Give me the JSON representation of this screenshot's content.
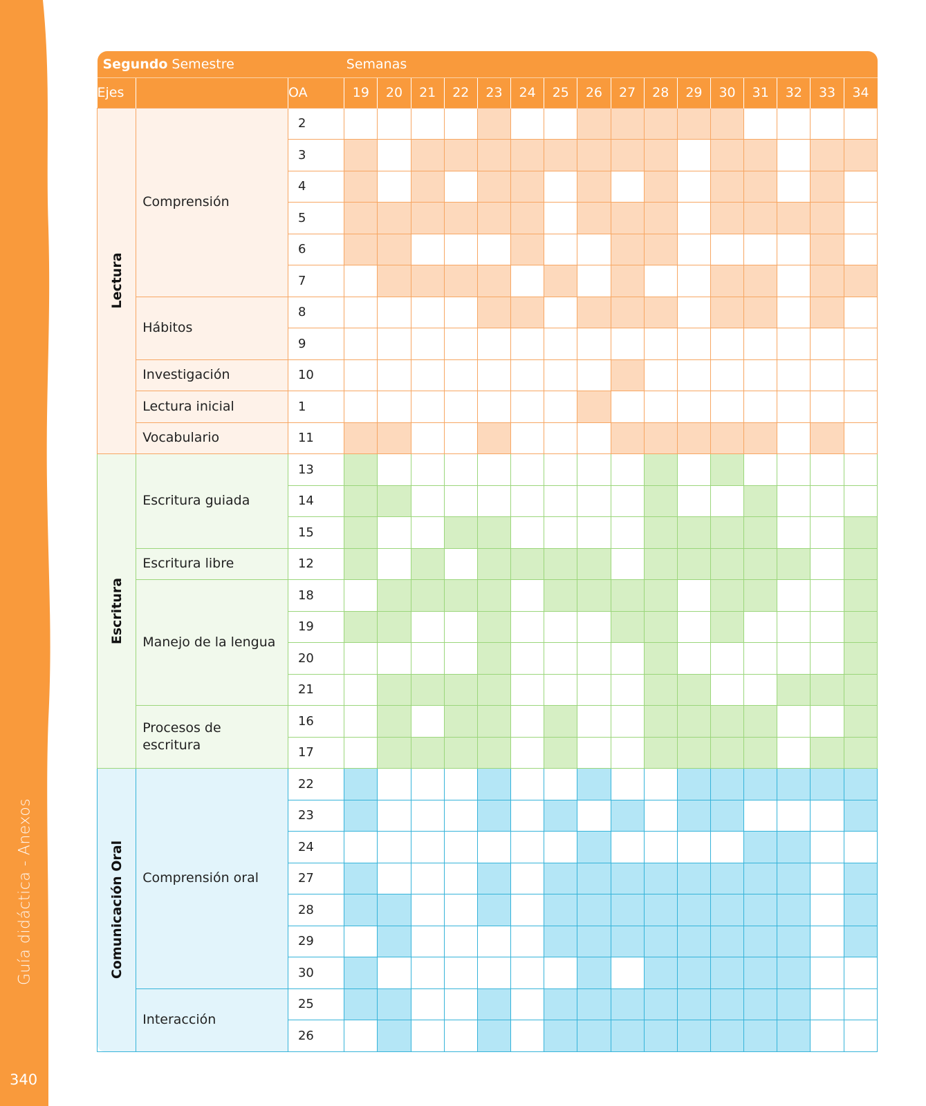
{
  "side_label": "Guía didáctica - Anexos",
  "page_number": "340",
  "header": {
    "semester_bold": "Segundo",
    "semester_rest": " Semestre",
    "weeks_label": "Semanas",
    "ejes_label": "Ejes",
    "oa_label": "OA",
    "weeks": [
      "19",
      "20",
      "21",
      "22",
      "23",
      "24",
      "25",
      "26",
      "27",
      "28",
      "29",
      "30",
      "31",
      "32",
      "33",
      "34"
    ]
  },
  "colors": {
    "band": "#f99a3c",
    "header": "#f99a3c",
    "lectura": {
      "border": "#f7a662",
      "bg": "#fef2e9",
      "fill": "#fdd9bc"
    },
    "escritura": {
      "border": "#9bd67b",
      "bg": "#f1f9ec",
      "fill": "#d6efc4"
    },
    "oral": {
      "border": "#35b3d9",
      "bg": "#e2f4fb",
      "fill": "#b4e6f6"
    }
  },
  "axes": [
    {
      "name": "Lectura",
      "theme": "lectura",
      "subaxes": [
        {
          "name": "Comprensión",
          "rows": [
            {
              "oa": "2",
              "marks": [
                0,
                0,
                0,
                0,
                1,
                0,
                0,
                1,
                1,
                1,
                1,
                1,
                0,
                0,
                0,
                0
              ]
            },
            {
              "oa": "3",
              "marks": [
                1,
                0,
                1,
                1,
                1,
                1,
                1,
                1,
                1,
                1,
                0,
                1,
                1,
                0,
                1,
                1
              ]
            },
            {
              "oa": "4",
              "marks": [
                1,
                0,
                1,
                0,
                1,
                1,
                0,
                1,
                0,
                1,
                0,
                1,
                1,
                0,
                1,
                0
              ]
            },
            {
              "oa": "5",
              "marks": [
                1,
                1,
                1,
                1,
                1,
                1,
                0,
                1,
                1,
                1,
                0,
                1,
                1,
                1,
                1,
                0
              ]
            },
            {
              "oa": "6",
              "marks": [
                1,
                1,
                0,
                0,
                0,
                1,
                0,
                0,
                1,
                1,
                0,
                0,
                0,
                0,
                1,
                0
              ]
            },
            {
              "oa": "7",
              "marks": [
                0,
                1,
                1,
                1,
                1,
                0,
                1,
                0,
                1,
                0,
                0,
                1,
                1,
                0,
                1,
                1
              ]
            }
          ]
        },
        {
          "name": "Hábitos",
          "rows": [
            {
              "oa": "8",
              "marks": [
                0,
                0,
                0,
                0,
                1,
                1,
                0,
                1,
                1,
                1,
                0,
                1,
                1,
                0,
                1,
                0
              ]
            },
            {
              "oa": "9",
              "marks": [
                0,
                0,
                0,
                0,
                0,
                0,
                0,
                0,
                0,
                0,
                0,
                0,
                0,
                0,
                0,
                0
              ]
            }
          ]
        },
        {
          "name": "Investigación",
          "rows": [
            {
              "oa": "10",
              "marks": [
                0,
                0,
                0,
                0,
                0,
                0,
                0,
                0,
                1,
                0,
                0,
                0,
                0,
                0,
                0,
                0
              ]
            }
          ]
        },
        {
          "name": "Lectura inicial",
          "rows": [
            {
              "oa": "1",
              "marks": [
                0,
                0,
                0,
                0,
                0,
                0,
                0,
                1,
                0,
                0,
                0,
                0,
                0,
                0,
                0,
                0
              ]
            }
          ]
        },
        {
          "name": "Vocabulario",
          "rows": [
            {
              "oa": "11",
              "marks": [
                1,
                1,
                0,
                0,
                1,
                0,
                0,
                0,
                1,
                1,
                1,
                1,
                1,
                0,
                1,
                0
              ]
            }
          ]
        }
      ]
    },
    {
      "name": "Escritura",
      "theme": "escritura",
      "subaxes": [
        {
          "name": "Escritura guiada",
          "rows": [
            {
              "oa": "13",
              "marks": [
                1,
                0,
                0,
                0,
                0,
                0,
                0,
                0,
                0,
                1,
                0,
                1,
                0,
                0,
                0,
                0
              ]
            },
            {
              "oa": "14",
              "marks": [
                1,
                1,
                0,
                0,
                0,
                0,
                0,
                0,
                0,
                1,
                0,
                0,
                1,
                0,
                0,
                0
              ]
            },
            {
              "oa": "15",
              "marks": [
                1,
                0,
                0,
                1,
                1,
                0,
                0,
                0,
                0,
                1,
                1,
                1,
                1,
                0,
                0,
                1
              ]
            }
          ]
        },
        {
          "name": "Escritura libre",
          "rows": [
            {
              "oa": "12",
              "marks": [
                1,
                0,
                1,
                0,
                1,
                1,
                1,
                1,
                0,
                1,
                1,
                1,
                1,
                1,
                0,
                1
              ]
            }
          ]
        },
        {
          "name": "Manejo de la lengua",
          "rows": [
            {
              "oa": "18",
              "marks": [
                0,
                1,
                1,
                1,
                1,
                0,
                1,
                1,
                1,
                1,
                0,
                1,
                1,
                0,
                0,
                1
              ]
            },
            {
              "oa": "19",
              "marks": [
                1,
                1,
                0,
                0,
                1,
                0,
                0,
                0,
                1,
                1,
                0,
                1,
                0,
                0,
                0,
                1
              ]
            },
            {
              "oa": "20",
              "marks": [
                0,
                0,
                0,
                0,
                1,
                0,
                0,
                0,
                0,
                1,
                0,
                0,
                0,
                0,
                0,
                1
              ]
            },
            {
              "oa": "21",
              "marks": [
                0,
                1,
                1,
                1,
                1,
                0,
                0,
                0,
                0,
                1,
                1,
                0,
                0,
                1,
                1,
                1
              ]
            }
          ]
        },
        {
          "name": "Procesos de escritura",
          "rows": [
            {
              "oa": "16",
              "marks": [
                0,
                1,
                0,
                1,
                1,
                0,
                1,
                0,
                0,
                1,
                1,
                1,
                1,
                0,
                0,
                1
              ]
            },
            {
              "oa": "17",
              "marks": [
                0,
                1,
                1,
                1,
                1,
                0,
                1,
                0,
                0,
                1,
                1,
                1,
                1,
                0,
                1,
                1
              ]
            }
          ]
        }
      ]
    },
    {
      "name": "Comunicación Oral",
      "theme": "oral",
      "subaxes": [
        {
          "name": "Comprensión oral",
          "rows": [
            {
              "oa": "22",
              "marks": [
                1,
                0,
                0,
                0,
                1,
                0,
                0,
                1,
                0,
                0,
                1,
                1,
                1,
                1,
                1,
                1
              ]
            },
            {
              "oa": "23",
              "marks": [
                1,
                0,
                0,
                0,
                1,
                0,
                1,
                0,
                1,
                0,
                1,
                1,
                0,
                0,
                0,
                1
              ]
            },
            {
              "oa": "24",
              "marks": [
                0,
                0,
                0,
                0,
                0,
                0,
                0,
                1,
                0,
                0,
                0,
                0,
                1,
                1,
                0,
                0
              ]
            },
            {
              "oa": "27",
              "marks": [
                1,
                0,
                0,
                0,
                1,
                0,
                1,
                1,
                1,
                1,
                1,
                1,
                1,
                1,
                0,
                1
              ]
            },
            {
              "oa": "28",
              "marks": [
                1,
                1,
                0,
                0,
                1,
                0,
                1,
                1,
                1,
                1,
                1,
                1,
                1,
                1,
                0,
                1
              ]
            },
            {
              "oa": "29",
              "marks": [
                0,
                1,
                0,
                0,
                0,
                0,
                1,
                1,
                1,
                1,
                1,
                1,
                1,
                1,
                0,
                1
              ]
            },
            {
              "oa": "30",
              "marks": [
                1,
                0,
                0,
                0,
                0,
                0,
                0,
                1,
                0,
                1,
                1,
                1,
                1,
                1,
                0,
                0
              ]
            }
          ]
        },
        {
          "name": "Interacción",
          "rows": [
            {
              "oa": "25",
              "marks": [
                1,
                1,
                0,
                0,
                1,
                0,
                1,
                1,
                1,
                1,
                1,
                1,
                1,
                1,
                0,
                0
              ]
            },
            {
              "oa": "26",
              "marks": [
                0,
                1,
                0,
                0,
                1,
                0,
                1,
                1,
                1,
                1,
                1,
                1,
                1,
                1,
                0,
                0
              ]
            }
          ]
        }
      ]
    }
  ]
}
